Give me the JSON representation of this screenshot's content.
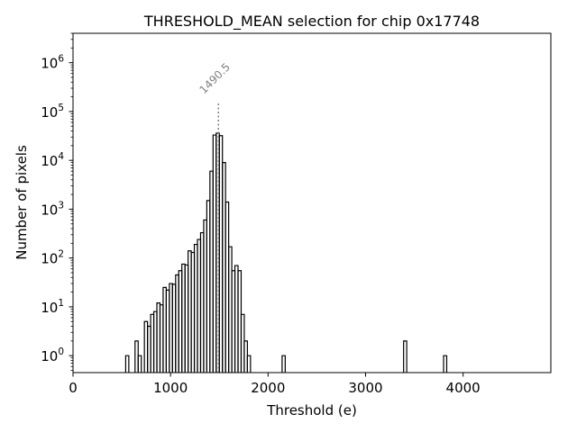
{
  "chart_data": {
    "type": "histogram",
    "title": "THRESHOLD_MEAN selection for chip 0x17748",
    "xlabel": "Threshold (e)",
    "ylabel": "Number of pixels",
    "xlim": [
      0,
      4900
    ],
    "ylim": [
      0.45,
      4000000
    ],
    "yscale": "log",
    "grid": false,
    "xticks": [
      {
        "value": 0,
        "label": "0"
      },
      {
        "value": 1000,
        "label": "1000"
      },
      {
        "value": 2000,
        "label": "2000"
      },
      {
        "value": 3000,
        "label": "3000"
      },
      {
        "value": 4000,
        "label": "4000"
      }
    ],
    "yticks": [
      {
        "value": 1,
        "base": "10",
        "exp": "0"
      },
      {
        "value": 10,
        "base": "10",
        "exp": "1"
      },
      {
        "value": 100,
        "base": "10",
        "exp": "2"
      },
      {
        "value": 1000,
        "base": "10",
        "exp": "3"
      },
      {
        "value": 10000,
        "base": "10",
        "exp": "4"
      },
      {
        "value": 100000,
        "base": "10",
        "exp": "5"
      },
      {
        "value": 1000000,
        "base": "10",
        "exp": "6"
      }
    ],
    "bins": [
      {
        "x0": 540,
        "x1": 572,
        "count": 1
      },
      {
        "x0": 636,
        "x1": 668,
        "count": 2
      },
      {
        "x0": 668,
        "x1": 700,
        "count": 1
      },
      {
        "x0": 732,
        "x1": 764,
        "count": 5
      },
      {
        "x0": 764,
        "x1": 796,
        "count": 4
      },
      {
        "x0": 796,
        "x1": 828,
        "count": 7
      },
      {
        "x0": 828,
        "x1": 860,
        "count": 8
      },
      {
        "x0": 860,
        "x1": 892,
        "count": 12
      },
      {
        "x0": 892,
        "x1": 924,
        "count": 11
      },
      {
        "x0": 924,
        "x1": 956,
        "count": 25
      },
      {
        "x0": 956,
        "x1": 988,
        "count": 22
      },
      {
        "x0": 988,
        "x1": 1020,
        "count": 30
      },
      {
        "x0": 1020,
        "x1": 1052,
        "count": 29
      },
      {
        "x0": 1052,
        "x1": 1084,
        "count": 45
      },
      {
        "x0": 1084,
        "x1": 1116,
        "count": 55
      },
      {
        "x0": 1116,
        "x1": 1148,
        "count": 75
      },
      {
        "x0": 1148,
        "x1": 1180,
        "count": 72
      },
      {
        "x0": 1180,
        "x1": 1212,
        "count": 140
      },
      {
        "x0": 1212,
        "x1": 1244,
        "count": 130
      },
      {
        "x0": 1244,
        "x1": 1276,
        "count": 190
      },
      {
        "x0": 1276,
        "x1": 1308,
        "count": 240
      },
      {
        "x0": 1308,
        "x1": 1340,
        "count": 330
      },
      {
        "x0": 1340,
        "x1": 1372,
        "count": 600
      },
      {
        "x0": 1372,
        "x1": 1404,
        "count": 1500
      },
      {
        "x0": 1404,
        "x1": 1436,
        "count": 6000
      },
      {
        "x0": 1436,
        "x1": 1468,
        "count": 33000
      },
      {
        "x0": 1468,
        "x1": 1500,
        "count": 36000
      },
      {
        "x0": 1500,
        "x1": 1532,
        "count": 32000
      },
      {
        "x0": 1532,
        "x1": 1564,
        "count": 9000
      },
      {
        "x0": 1564,
        "x1": 1596,
        "count": 1400
      },
      {
        "x0": 1596,
        "x1": 1628,
        "count": 170
      },
      {
        "x0": 1628,
        "x1": 1660,
        "count": 55
      },
      {
        "x0": 1660,
        "x1": 1692,
        "count": 70
      },
      {
        "x0": 1692,
        "x1": 1724,
        "count": 55
      },
      {
        "x0": 1724,
        "x1": 1756,
        "count": 7
      },
      {
        "x0": 1756,
        "x1": 1788,
        "count": 2
      },
      {
        "x0": 1788,
        "x1": 1820,
        "count": 1
      },
      {
        "x0": 2144,
        "x1": 2176,
        "count": 1
      },
      {
        "x0": 3390,
        "x1": 3422,
        "count": 2
      },
      {
        "x0": 3800,
        "x1": 3832,
        "count": 1
      }
    ],
    "annotations": [
      {
        "type": "vline",
        "x": 1490.5,
        "label": "1490.5",
        "style": "dotted",
        "color": "#808080"
      }
    ]
  }
}
